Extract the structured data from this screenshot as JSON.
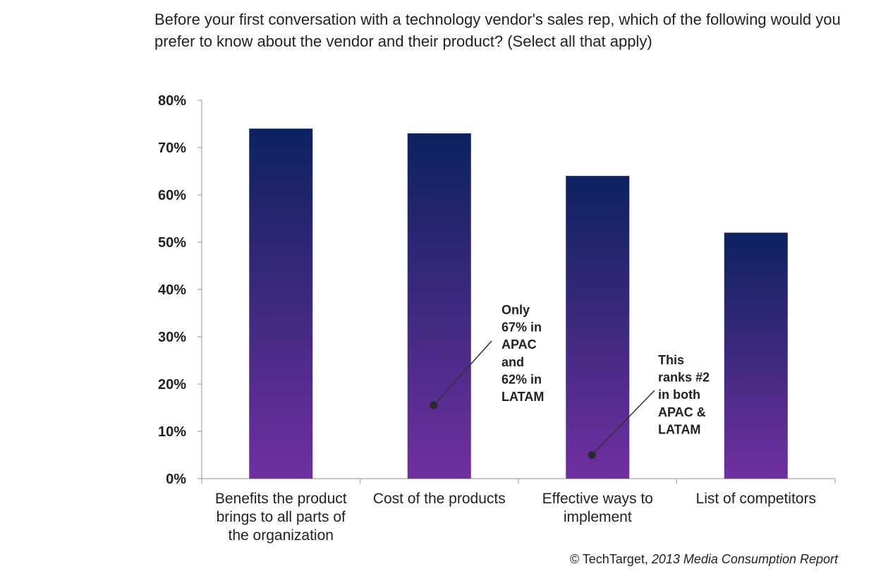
{
  "title": "Before your first conversation with a technology vendor's sales rep, which of the following would you prefer to know about the vendor and their product? (Select all that apply)",
  "footer": {
    "prefix": "© TechTarget, ",
    "source": "2013 Media Consumption Report"
  },
  "chart_data": {
    "type": "bar",
    "title": "Before your first conversation with a technology vendor's sales rep, which of the following would you prefer to know about the vendor and their product? (Select all that apply)",
    "xlabel": "",
    "ylabel": "",
    "ylim": [
      0,
      80
    ],
    "yticks": [
      0,
      10,
      20,
      30,
      40,
      50,
      60,
      70,
      80
    ],
    "ytick_labels": [
      "0%",
      "10%",
      "20%",
      "30%",
      "40%",
      "50%",
      "60%",
      "70%",
      "80%"
    ],
    "categories": [
      [
        "Benefits the product",
        "brings to all parts of",
        "the organization"
      ],
      [
        "Cost of the products"
      ],
      [
        "Effective ways to",
        "implement"
      ],
      [
        "List of competitors"
      ]
    ],
    "values": [
      74,
      73,
      64,
      52
    ],
    "colors": {
      "bar_top": "#0c2260",
      "bar_bottom": "#7030a0",
      "axis": "#a6a6a6",
      "text": "#222222"
    },
    "annotations": [
      {
        "category_index": 1,
        "point_value": 15.5,
        "lines": [
          "Only",
          "67% in",
          "APAC",
          "and",
          "62% in",
          "LATAM"
        ]
      },
      {
        "category_index": 2,
        "point_value": 5,
        "lines": [
          "This",
          "ranks #2",
          "in both",
          "APAC &",
          "LATAM"
        ]
      }
    ]
  }
}
